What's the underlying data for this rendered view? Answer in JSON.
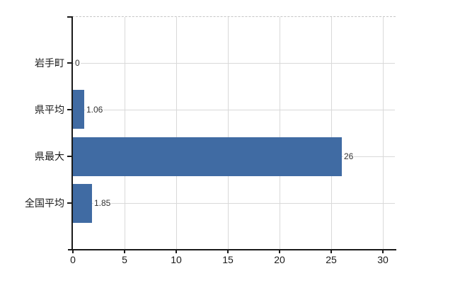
{
  "chart_data": {
    "type": "bar",
    "orientation": "horizontal",
    "title": "",
    "xlabel": "",
    "ylabel": "",
    "categories": [
      "岩手町",
      "県平均",
      "県最大",
      "全国平均"
    ],
    "values": [
      0,
      1.06,
      26,
      1.85
    ],
    "value_labels": [
      "0",
      "1.06",
      "26",
      "1.85"
    ],
    "x_ticks": [
      0,
      5,
      10,
      15,
      20,
      25,
      30
    ],
    "xlim": [
      0,
      31.2
    ],
    "grid": true,
    "legend": false,
    "colors": {
      "bar": "#406ba3",
      "gridline": "#d9d9d9",
      "plot_top_border": "#c6c6c6",
      "axis": "#1a1a1a",
      "category_text": "#1a1a1a",
      "tick_text": "#1a1a1a",
      "value_text": "#333333",
      "background": "#ffffff"
    }
  }
}
